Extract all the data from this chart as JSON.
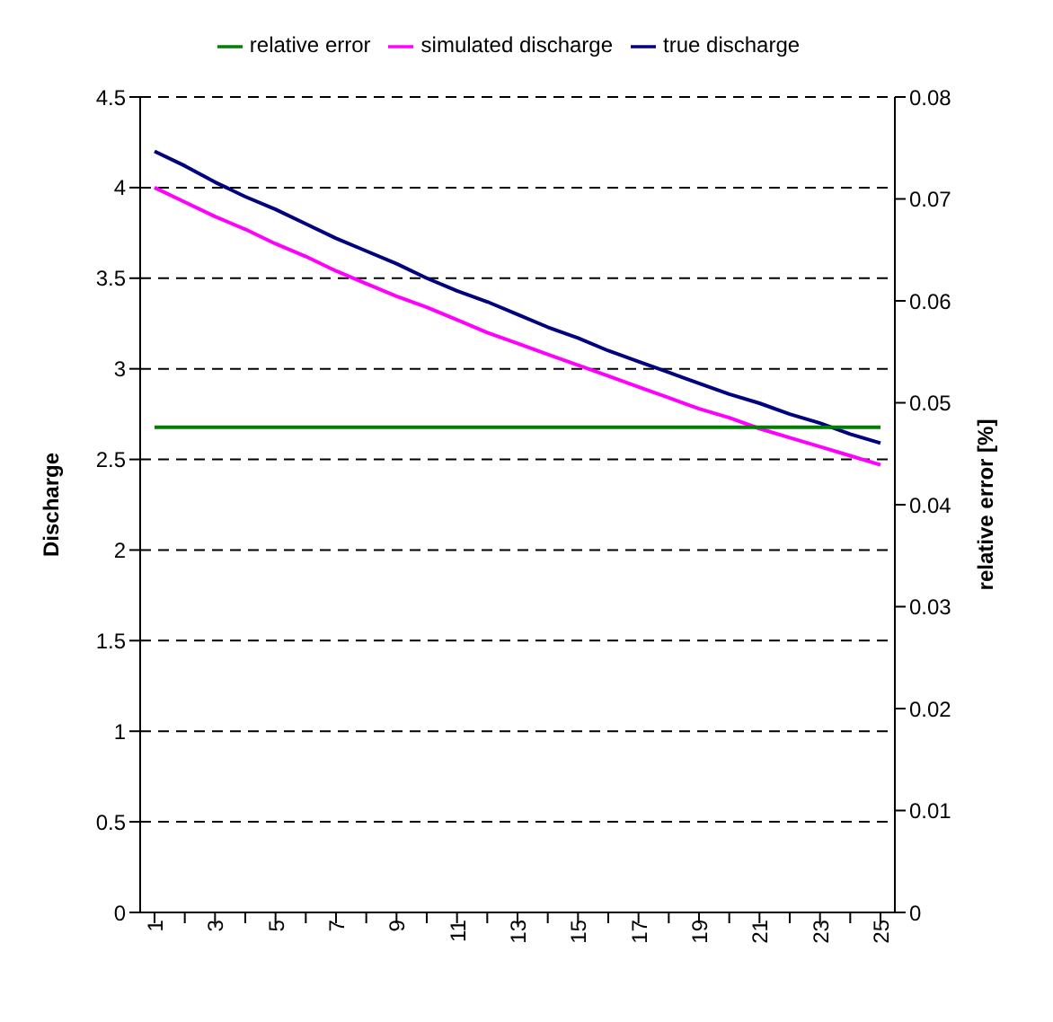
{
  "chart_data": {
    "type": "line",
    "ylabel": "Discharge",
    "y2label": "relative error [%]",
    "categories": [
      "1",
      null,
      "3",
      null,
      "5",
      null,
      "7",
      null,
      "9",
      null,
      "11",
      null,
      "13",
      null,
      "15",
      null,
      "17",
      null,
      "19",
      null,
      "21",
      null,
      "23",
      null,
      "25"
    ],
    "series": [
      {
        "name": "true discharge",
        "color": "#000080",
        "values": [
          4.2,
          4.12,
          4.03,
          3.95,
          3.88,
          3.8,
          3.72,
          3.65,
          3.58,
          3.5,
          3.43,
          3.37,
          3.3,
          3.23,
          3.17,
          3.1,
          3.04,
          2.98,
          2.92,
          2.86,
          2.81,
          2.75,
          2.7,
          2.64,
          2.59
        ]
      },
      {
        "name": "simulated discharge",
        "color": "#ff00ff",
        "values": [
          4.0,
          3.92,
          3.84,
          3.77,
          3.69,
          3.62,
          3.54,
          3.47,
          3.4,
          3.34,
          3.27,
          3.2,
          3.14,
          3.08,
          3.02,
          2.96,
          2.9,
          2.84,
          2.78,
          2.73,
          2.67,
          2.62,
          2.57,
          2.52,
          2.47
        ]
      },
      {
        "name": "relative error",
        "color": "#008000",
        "axis": "y2",
        "values": [
          0.0476,
          0.0476,
          0.0476,
          0.0476,
          0.0476,
          0.0476,
          0.0476,
          0.0476,
          0.0476,
          0.0476,
          0.0476,
          0.0476,
          0.0476,
          0.0476,
          0.0476,
          0.0476,
          0.0476,
          0.0476,
          0.0476,
          0.0476,
          0.0476,
          0.0476,
          0.0476,
          0.0476,
          0.0476
        ]
      }
    ],
    "ylim": [
      0,
      4.5
    ],
    "yticks": [
      0,
      0.5,
      1,
      1.5,
      2,
      2.5,
      3,
      3.5,
      4,
      4.5
    ],
    "y2lim": [
      0,
      0.08
    ],
    "y2ticks": [
      0,
      0.01,
      0.02,
      0.03,
      0.04,
      0.05,
      0.06,
      0.07,
      0.08
    ],
    "grid": "y",
    "legend": "top",
    "marker": "none",
    "line_style": "solid"
  }
}
